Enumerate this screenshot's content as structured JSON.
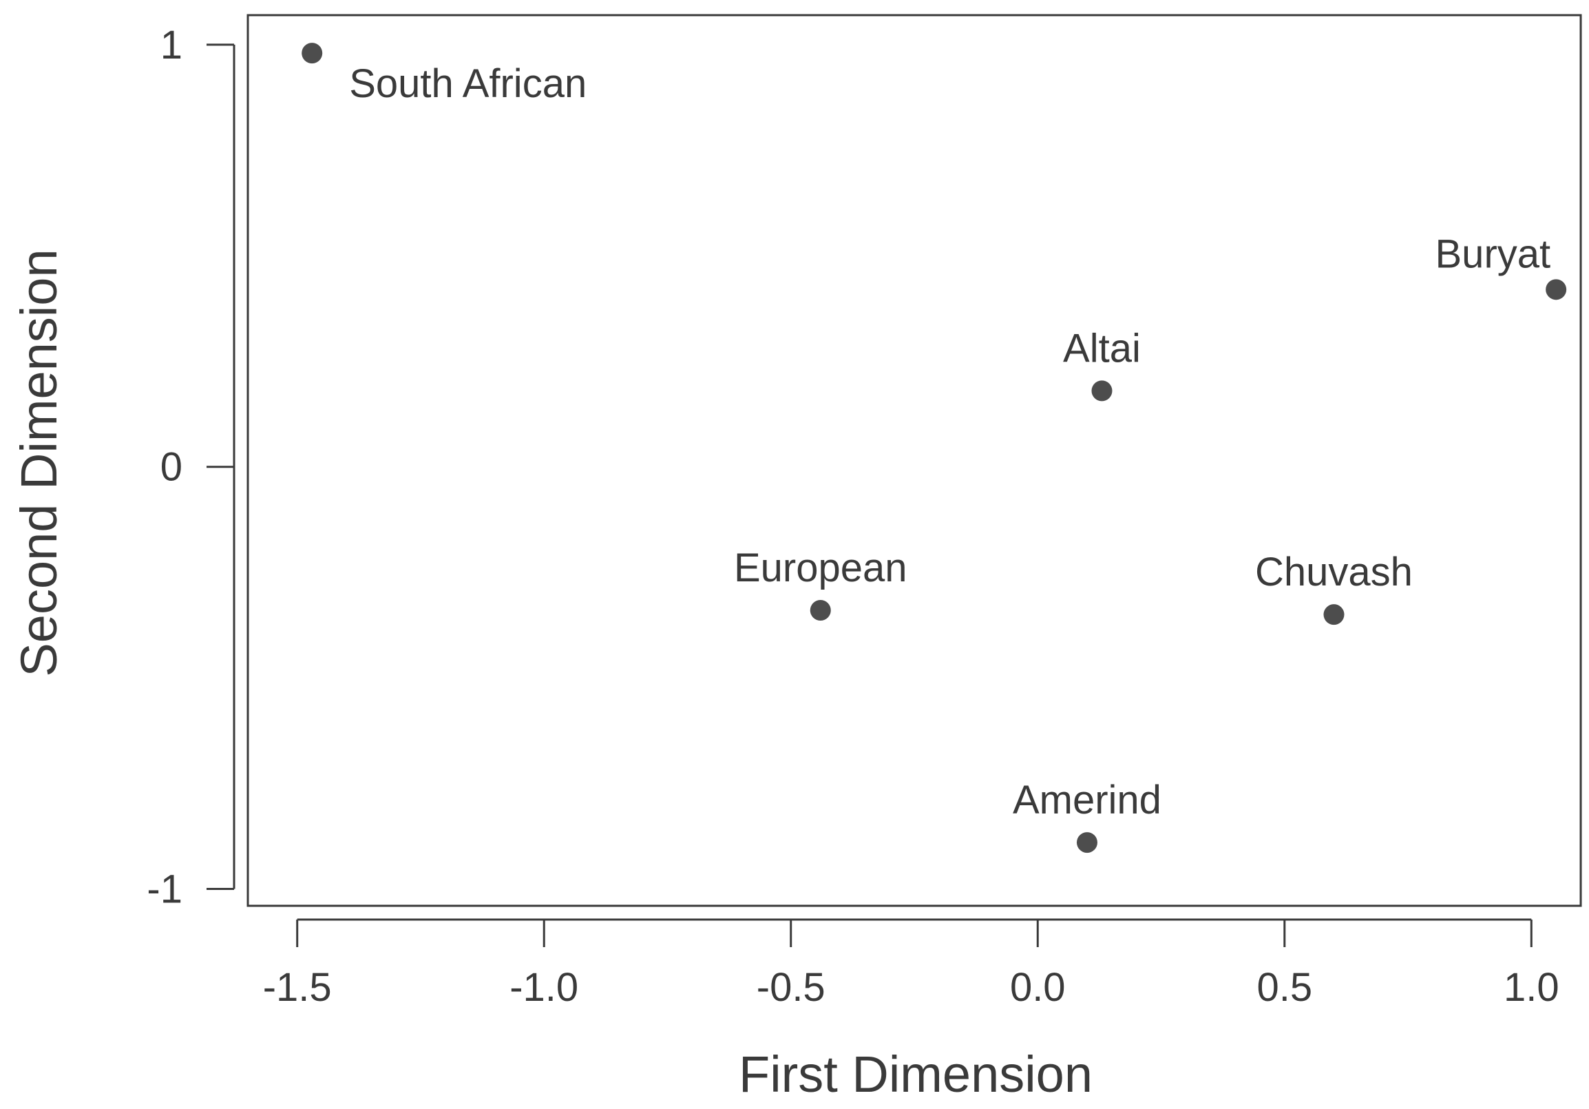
{
  "chart_data": {
    "type": "scatter",
    "title": "",
    "xlabel": "First Dimension",
    "ylabel": "Second Dimension",
    "xlim": [
      -1.6,
      1.1
    ],
    "ylim": [
      -1.04,
      1.07
    ],
    "x_ticks": [
      -1.5,
      -1.0,
      -0.5,
      0.0,
      0.5,
      1.0
    ],
    "x_tick_labels": [
      "-1.5",
      "-1.0",
      "-0.5",
      "0.0",
      "0.5",
      "1.0"
    ],
    "y_ticks": [
      1,
      0,
      -1
    ],
    "y_tick_labels": [
      "1",
      "0",
      "-1"
    ],
    "grid": false,
    "legend": "none",
    "colors": {
      "points": "#4d4d4d",
      "axes": "#3a3a3a",
      "text": "#3a3a3a"
    },
    "points": [
      {
        "label": "South African",
        "x": -1.47,
        "y": 0.98,
        "label_position": "below-right"
      },
      {
        "label": "Buryat",
        "x": 1.05,
        "y": 0.42,
        "label_position": "above-left"
      },
      {
        "label": "Altai",
        "x": 0.13,
        "y": 0.18,
        "label_position": "above"
      },
      {
        "label": "European",
        "x": -0.44,
        "y": -0.34,
        "label_position": "above"
      },
      {
        "label": "Chuvash",
        "x": 0.6,
        "y": -0.35,
        "label_position": "above"
      },
      {
        "label": "Amerind",
        "x": 0.1,
        "y": -0.89,
        "label_position": "above"
      }
    ]
  }
}
